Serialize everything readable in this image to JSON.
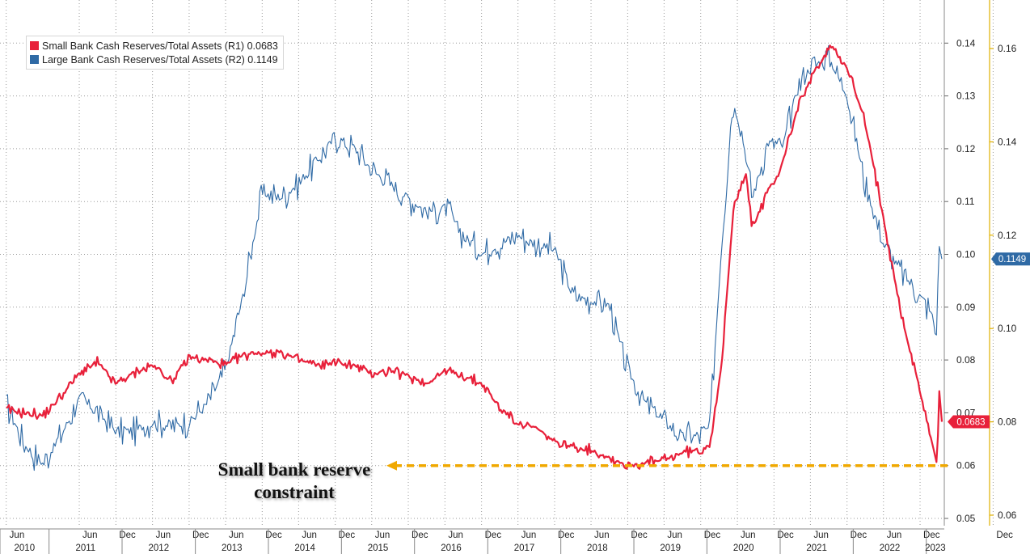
{
  "colors": {
    "small": "#e8203a",
    "large": "#2f6aa5",
    "grid": "#9a9a9a",
    "axis_right2": "#e0b000",
    "constraint": "#f0a800"
  },
  "legend": {
    "items": [
      {
        "label": "Small Bank Cash Reserves/Total Assets (R1) 0.0683",
        "color": "#e8203a"
      },
      {
        "label": "Large Bank Cash Reserves/Total Assets (R2) 0.1149",
        "color": "#2f6aa5"
      }
    ]
  },
  "annotation": {
    "line1": "Small bank reserve",
    "line2": "constraint"
  },
  "chart_data": {
    "type": "line",
    "x_axis": {
      "range": [
        "2010-06",
        "2023-03"
      ],
      "month_ticks": [
        "Jun",
        "Dec",
        "Jun",
        "Dec",
        "Jun",
        "Dec",
        "Jun",
        "Dec",
        "Jun",
        "Dec",
        "Jun",
        "Dec",
        "Jun",
        "Dec",
        "Jun",
        "Dec",
        "Jun",
        "Dec",
        "Jun",
        "Dec",
        "Jun",
        "Dec",
        "Jun",
        "Dec",
        "Jun",
        "Dec"
      ],
      "years": [
        "2010",
        "2011",
        "2012",
        "2013",
        "2014",
        "2015",
        "2016",
        "2017",
        "2018",
        "2019",
        "2020",
        "2021",
        "2022",
        "2023"
      ]
    },
    "y_axis_r1": {
      "range": [
        0.05,
        0.15
      ],
      "ticks": [
        "0.14",
        "0.13",
        "0.12",
        "0.11",
        "0.10",
        "0.09",
        "0.08",
        "0.07",
        "0.06",
        "0.05"
      ]
    },
    "y_axis_r2": {
      "range": [
        0.06,
        0.17
      ],
      "ticks": [
        "0.16",
        "0.14",
        "0.12",
        "0.10",
        "0.08",
        "0.06"
      ]
    },
    "grid": true,
    "legend_position": "top-left",
    "last_value_labels": {
      "small": "0.0683",
      "large": "0.1149"
    },
    "constraint_level": 0.06,
    "series": [
      {
        "name": "Small Bank Cash Reserves/Total Assets (R1)",
        "axis": "R1",
        "color": "#e8203a",
        "points": [
          [
            "2010-06-01",
            0.0705
          ],
          [
            "2010-09-01",
            0.07
          ],
          [
            "2010-12-01",
            0.0695
          ],
          [
            "2011-03-01",
            0.073
          ],
          [
            "2011-06-01",
            0.0775
          ],
          [
            "2011-09-01",
            0.0795
          ],
          [
            "2011-12-01",
            0.0755
          ],
          [
            "2012-03-01",
            0.0775
          ],
          [
            "2012-06-01",
            0.079
          ],
          [
            "2012-09-01",
            0.076
          ],
          [
            "2012-12-01",
            0.0805
          ],
          [
            "2013-03-01",
            0.08
          ],
          [
            "2013-06-01",
            0.079
          ],
          [
            "2013-09-01",
            0.081
          ],
          [
            "2013-12-01",
            0.0815
          ],
          [
            "2014-03-01",
            0.0815
          ],
          [
            "2014-06-01",
            0.08
          ],
          [
            "2014-09-01",
            0.079
          ],
          [
            "2014-12-01",
            0.0795
          ],
          [
            "2015-03-01",
            0.079
          ],
          [
            "2015-06-01",
            0.0775
          ],
          [
            "2015-09-01",
            0.078
          ],
          [
            "2015-12-01",
            0.077
          ],
          [
            "2016-03-01",
            0.0755
          ],
          [
            "2016-06-01",
            0.078
          ],
          [
            "2016-09-01",
            0.077
          ],
          [
            "2016-12-01",
            0.0755
          ],
          [
            "2017-03-01",
            0.071
          ],
          [
            "2017-06-01",
            0.068
          ],
          [
            "2017-09-01",
            0.067
          ],
          [
            "2017-12-01",
            0.0645
          ],
          [
            "2018-03-01",
            0.0635
          ],
          [
            "2018-06-01",
            0.063
          ],
          [
            "2018-09-01",
            0.0615
          ],
          [
            "2018-12-01",
            0.06
          ],
          [
            "2019-03-01",
            0.0605
          ],
          [
            "2019-06-01",
            0.061
          ],
          [
            "2019-09-01",
            0.0625
          ],
          [
            "2019-12-01",
            0.063
          ],
          [
            "2020-01-15",
            0.064
          ],
          [
            "2020-03-15",
            0.079
          ],
          [
            "2020-05-15",
            0.11
          ],
          [
            "2020-07-15",
            0.115
          ],
          [
            "2020-08-15",
            0.105
          ],
          [
            "2020-11-01",
            0.112
          ],
          [
            "2021-01-01",
            0.116
          ],
          [
            "2021-04-01",
            0.128
          ],
          [
            "2021-06-15",
            0.134
          ],
          [
            "2021-09-15",
            0.1395
          ],
          [
            "2021-12-01",
            0.1355
          ],
          [
            "2022-03-01",
            0.125
          ],
          [
            "2022-06-01",
            0.107
          ],
          [
            "2022-09-01",
            0.088
          ],
          [
            "2022-12-01",
            0.074
          ],
          [
            "2023-02-01",
            0.064
          ],
          [
            "2023-02-25",
            0.06
          ],
          [
            "2023-03-05",
            0.075
          ],
          [
            "2023-03-20",
            0.0683
          ]
        ]
      },
      {
        "name": "Large Bank Cash Reserves/Total Assets (R2)",
        "axis": "R2",
        "color": "#2f6aa5",
        "points": [
          [
            "2010-06-01",
            0.084
          ],
          [
            "2010-09-01",
            0.075
          ],
          [
            "2010-12-01",
            0.071
          ],
          [
            "2011-03-01",
            0.077
          ],
          [
            "2011-06-01",
            0.085
          ],
          [
            "2011-09-01",
            0.082
          ],
          [
            "2011-12-01",
            0.078
          ],
          [
            "2012-03-01",
            0.078
          ],
          [
            "2012-06-01",
            0.08
          ],
          [
            "2012-09-01",
            0.079
          ],
          [
            "2012-12-01",
            0.08
          ],
          [
            "2013-03-01",
            0.084
          ],
          [
            "2013-06-01",
            0.091
          ],
          [
            "2013-09-01",
            0.108
          ],
          [
            "2013-12-01",
            0.129
          ],
          [
            "2014-03-01",
            0.128
          ],
          [
            "2014-06-01",
            0.131
          ],
          [
            "2014-09-01",
            0.136
          ],
          [
            "2014-12-01",
            0.141
          ],
          [
            "2015-03-01",
            0.139
          ],
          [
            "2015-06-01",
            0.134
          ],
          [
            "2015-09-01",
            0.131
          ],
          [
            "2015-12-01",
            0.128
          ],
          [
            "2016-03-01",
            0.125
          ],
          [
            "2016-06-01",
            0.126
          ],
          [
            "2016-09-01",
            0.12
          ],
          [
            "2016-12-01",
            0.116
          ],
          [
            "2017-03-01",
            0.118
          ],
          [
            "2017-06-01",
            0.12
          ],
          [
            "2017-09-01",
            0.118
          ],
          [
            "2017-12-01",
            0.117
          ],
          [
            "2018-03-01",
            0.107
          ],
          [
            "2018-06-01",
            0.106
          ],
          [
            "2018-09-01",
            0.105
          ],
          [
            "2018-12-01",
            0.091
          ],
          [
            "2019-03-01",
            0.084
          ],
          [
            "2019-06-01",
            0.08
          ],
          [
            "2019-09-01",
            0.077
          ],
          [
            "2019-12-01",
            0.077
          ],
          [
            "2020-01-15",
            0.079
          ],
          [
            "2020-03-15",
            0.118
          ],
          [
            "2020-05-01",
            0.145
          ],
          [
            "2020-06-01",
            0.148
          ],
          [
            "2020-08-15",
            0.128
          ],
          [
            "2020-11-01",
            0.14
          ],
          [
            "2021-01-15",
            0.139
          ],
          [
            "2021-04-01",
            0.152
          ],
          [
            "2021-06-01",
            0.156
          ],
          [
            "2021-09-01",
            0.158
          ],
          [
            "2021-12-01",
            0.15
          ],
          [
            "2022-03-01",
            0.131
          ],
          [
            "2022-06-01",
            0.118
          ],
          [
            "2022-09-01",
            0.112
          ],
          [
            "2022-12-01",
            0.107
          ],
          [
            "2023-02-01",
            0.103
          ],
          [
            "2023-02-20",
            0.097
          ],
          [
            "2023-03-05",
            0.118
          ],
          [
            "2023-03-20",
            0.1149
          ]
        ]
      }
    ]
  }
}
